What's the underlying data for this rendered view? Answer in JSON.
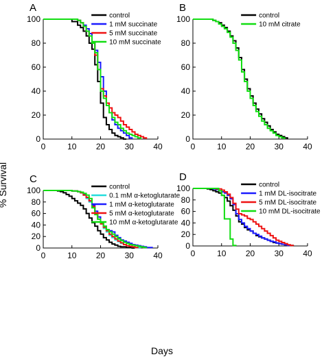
{
  "figure": {
    "xlabel": "Days",
    "ylabel": "% Survival"
  },
  "colors": {
    "black": "#000000",
    "blue": "#1a1aff",
    "red": "#ee1111",
    "green": "#11dd11",
    "cyan": "#22dddd"
  },
  "chart_data": [
    {
      "type": "line",
      "panel": "A",
      "xlim": [
        0,
        40
      ],
      "ylim": [
        0,
        100
      ],
      "xticks": [
        0,
        10,
        20,
        30,
        40
      ],
      "yticks": [
        0,
        20,
        40,
        60,
        80,
        100
      ],
      "legend_position": "top-right",
      "series": [
        {
          "name": "control",
          "color": "black",
          "x": [
            0,
            8,
            10,
            12,
            13,
            14,
            15,
            16,
            17,
            18,
            19,
            20,
            21,
            22,
            23,
            24,
            25,
            26,
            27,
            28,
            29
          ],
          "y": [
            100,
            100,
            98,
            95,
            93,
            90,
            86,
            80,
            75,
            62,
            48,
            30,
            18,
            12,
            8,
            5,
            3,
            2,
            1,
            0,
            0
          ]
        },
        {
          "name": "1 mM succinate",
          "color": "blue",
          "x": [
            0,
            10,
            12,
            13,
            14,
            15,
            16,
            17,
            18,
            19,
            20,
            21,
            22,
            23,
            24,
            25,
            26,
            27,
            28,
            29,
            30,
            31
          ],
          "y": [
            100,
            100,
            99,
            97,
            95,
            92,
            88,
            80,
            74,
            64,
            52,
            40,
            30,
            22,
            16,
            12,
            9,
            7,
            5,
            3,
            1,
            0
          ]
        },
        {
          "name": "5 mM succinate",
          "color": "red",
          "x": [
            0,
            11,
            12,
            13,
            14,
            15,
            16,
            17,
            18,
            19,
            20,
            21,
            22,
            23,
            24,
            25,
            26,
            27,
            28,
            29,
            30,
            31,
            32,
            33,
            34,
            35,
            36
          ],
          "y": [
            100,
            100,
            99,
            97,
            94,
            90,
            86,
            80,
            70,
            58,
            42,
            36,
            30,
            26,
            22,
            20,
            18,
            15,
            12,
            10,
            8,
            6,
            4,
            3,
            2,
            1,
            0
          ]
        },
        {
          "name": "10 mM succinate",
          "color": "green",
          "x": [
            0,
            10,
            12,
            13,
            14,
            15,
            16,
            17,
            18,
            19,
            20,
            21,
            22,
            23,
            24,
            25,
            26,
            27,
            28,
            29,
            30,
            31,
            32,
            33,
            34
          ],
          "y": [
            100,
            100,
            99,
            97,
            94,
            90,
            86,
            80,
            72,
            58,
            40,
            34,
            28,
            22,
            18,
            14,
            12,
            9,
            7,
            5,
            4,
            3,
            2,
            1,
            0
          ]
        }
      ]
    },
    {
      "type": "line",
      "panel": "B",
      "xlim": [
        0,
        40
      ],
      "ylim": [
        0,
        100
      ],
      "xticks": [
        0,
        10,
        20,
        30,
        40
      ],
      "yticks": [
        0,
        20,
        40,
        60,
        80,
        100
      ],
      "legend_position": "top-right",
      "series": [
        {
          "name": "control",
          "color": "black",
          "x": [
            0,
            6,
            7,
            8,
            9,
            10,
            11,
            12,
            13,
            14,
            15,
            16,
            17,
            18,
            19,
            20,
            21,
            22,
            23,
            24,
            25,
            26,
            27,
            28,
            29,
            30,
            31,
            32,
            33
          ],
          "y": [
            100,
            100,
            99,
            98,
            97,
            95,
            93,
            90,
            86,
            82,
            76,
            68,
            58,
            50,
            42,
            36,
            30,
            25,
            21,
            17,
            14,
            11,
            8,
            6,
            4,
            3,
            2,
            1,
            0
          ]
        },
        {
          "name": "10 mM citrate",
          "color": "green",
          "x": [
            0,
            6,
            7,
            8,
            9,
            10,
            11,
            12,
            13,
            14,
            15,
            16,
            17,
            18,
            19,
            20,
            21,
            22,
            23,
            24,
            25,
            26,
            27,
            28,
            29,
            30,
            31,
            32
          ],
          "y": [
            100,
            100,
            99,
            98,
            96,
            94,
            92,
            89,
            85,
            80,
            74,
            66,
            56,
            48,
            40,
            34,
            28,
            23,
            19,
            15,
            12,
            9,
            7,
            5,
            3,
            2,
            1,
            0
          ]
        }
      ]
    },
    {
      "type": "line",
      "panel": "C",
      "xlim": [
        0,
        40
      ],
      "ylim": [
        0,
        100
      ],
      "xticks": [
        0,
        10,
        20,
        30,
        40
      ],
      "yticks": [
        0,
        20,
        40,
        60,
        80,
        100
      ],
      "legend_position": "top-right",
      "series": [
        {
          "name": "control",
          "color": "black",
          "x": [
            0,
            4,
            5,
            6,
            7,
            8,
            9,
            10,
            11,
            12,
            13,
            14,
            15,
            16,
            17,
            18,
            19,
            20,
            21,
            22,
            23,
            24,
            25,
            26,
            27,
            28,
            29,
            30,
            31,
            32
          ],
          "y": [
            100,
            100,
            99,
            98,
            96,
            93,
            90,
            86,
            82,
            78,
            74,
            68,
            60,
            52,
            44,
            38,
            30,
            24,
            18,
            14,
            10,
            7,
            5,
            3,
            2,
            2,
            1,
            1,
            0,
            0
          ]
        },
        {
          "name": "0.1 mM α-ketoglutarate",
          "color": "cyan",
          "x": [
            0,
            8,
            10,
            12,
            13,
            14,
            15,
            16,
            17,
            18,
            19,
            20,
            21,
            22,
            23,
            24,
            25,
            26,
            27,
            28,
            29,
            30,
            31,
            32,
            33,
            34
          ],
          "y": [
            100,
            100,
            99,
            98,
            96,
            92,
            86,
            80,
            70,
            60,
            50,
            42,
            34,
            28,
            22,
            18,
            14,
            11,
            8,
            6,
            4,
            3,
            2,
            1,
            1,
            0
          ]
        },
        {
          "name": "1 mM α-ketoglutarate",
          "color": "blue",
          "x": [
            0,
            8,
            10,
            12,
            13,
            14,
            15,
            16,
            17,
            18,
            19,
            20,
            21,
            22,
            23,
            24,
            25,
            26,
            27,
            28,
            29,
            30,
            31,
            32,
            33,
            34,
            35,
            36,
            37,
            38
          ],
          "y": [
            100,
            100,
            99,
            98,
            96,
            93,
            88,
            82,
            74,
            64,
            54,
            44,
            38,
            32,
            30,
            28,
            22,
            18,
            14,
            12,
            10,
            8,
            6,
            5,
            4,
            3,
            2,
            1,
            1,
            0
          ]
        },
        {
          "name": "5 mM α-ketoglutarate",
          "color": "red",
          "x": [
            0,
            9,
            10,
            12,
            13,
            14,
            15,
            16,
            17,
            18,
            19,
            20,
            21,
            22,
            23,
            24,
            25,
            26,
            27,
            28,
            29,
            30,
            31,
            32,
            33
          ],
          "y": [
            100,
            100,
            99,
            98,
            96,
            92,
            88,
            82,
            72,
            60,
            50,
            42,
            36,
            30,
            24,
            20,
            16,
            12,
            9,
            6,
            4,
            3,
            2,
            1,
            0
          ]
        },
        {
          "name": "10 mM α-ketoglutarate",
          "color": "green",
          "x": [
            0,
            8,
            10,
            12,
            13,
            14,
            15,
            16,
            17,
            18,
            19,
            20,
            21,
            22,
            23,
            24,
            25,
            26,
            27,
            28,
            29,
            30,
            31,
            32,
            33,
            34,
            35,
            36
          ],
          "y": [
            100,
            100,
            99,
            98,
            97,
            95,
            92,
            86,
            70,
            58,
            50,
            44,
            38,
            32,
            28,
            24,
            20,
            16,
            13,
            10,
            8,
            6,
            5,
            4,
            3,
            2,
            1,
            0
          ]
        }
      ]
    },
    {
      "type": "line",
      "panel": "D",
      "xlim": [
        0,
        40
      ],
      "ylim": [
        0,
        100
      ],
      "xticks": [
        0,
        10,
        20,
        30,
        40
      ],
      "yticks": [
        0,
        20,
        40,
        60,
        80,
        100
      ],
      "legend_position": "top-right",
      "series": [
        {
          "name": "control",
          "color": "black",
          "x": [
            0,
            4,
            5,
            6,
            7,
            8,
            9,
            10,
            11,
            12,
            13,
            14,
            15,
            16,
            17,
            18,
            19,
            20,
            21,
            22,
            23,
            24,
            25,
            26,
            27,
            28,
            29,
            30,
            31,
            32,
            33,
            34,
            35
          ],
          "y": [
            100,
            100,
            99,
            98,
            96,
            94,
            92,
            88,
            84,
            78,
            70,
            62,
            52,
            42,
            38,
            32,
            28,
            26,
            22,
            18,
            16,
            14,
            12,
            10,
            8,
            6,
            5,
            4,
            3,
            2,
            1,
            1,
            0
          ]
        },
        {
          "name": "1 mM DL-isocitrate",
          "color": "blue",
          "x": [
            0,
            6,
            7,
            8,
            9,
            10,
            11,
            12,
            13,
            14,
            15,
            16,
            17,
            18,
            19,
            20,
            21,
            22,
            23,
            24,
            25,
            26,
            27,
            28,
            29,
            30,
            31,
            32,
            33,
            34
          ],
          "y": [
            100,
            100,
            99,
            98,
            96,
            94,
            92,
            88,
            82,
            72,
            56,
            46,
            40,
            34,
            30,
            26,
            22,
            20,
            17,
            14,
            12,
            10,
            8,
            7,
            5,
            4,
            3,
            2,
            1,
            0
          ]
        },
        {
          "name": "5 mM DL-isocitrate",
          "color": "red",
          "x": [
            0,
            6,
            8,
            10,
            11,
            12,
            13,
            14,
            15,
            16,
            17,
            18,
            19,
            20,
            21,
            22,
            23,
            24,
            25,
            26,
            27,
            28,
            29,
            30,
            31,
            32,
            33,
            34,
            35
          ],
          "y": [
            100,
            100,
            99,
            97,
            94,
            90,
            84,
            74,
            64,
            56,
            54,
            52,
            48,
            46,
            42,
            38,
            34,
            30,
            26,
            22,
            18,
            14,
            10,
            8,
            6,
            4,
            2,
            1,
            0
          ]
        },
        {
          "name": "10 mM DL-isocitrate",
          "color": "green",
          "x": [
            0,
            8,
            9,
            10,
            11,
            12,
            13,
            14,
            15
          ],
          "y": [
            100,
            100,
            96,
            88,
            47,
            47,
            12,
            1,
            0
          ]
        }
      ]
    }
  ]
}
